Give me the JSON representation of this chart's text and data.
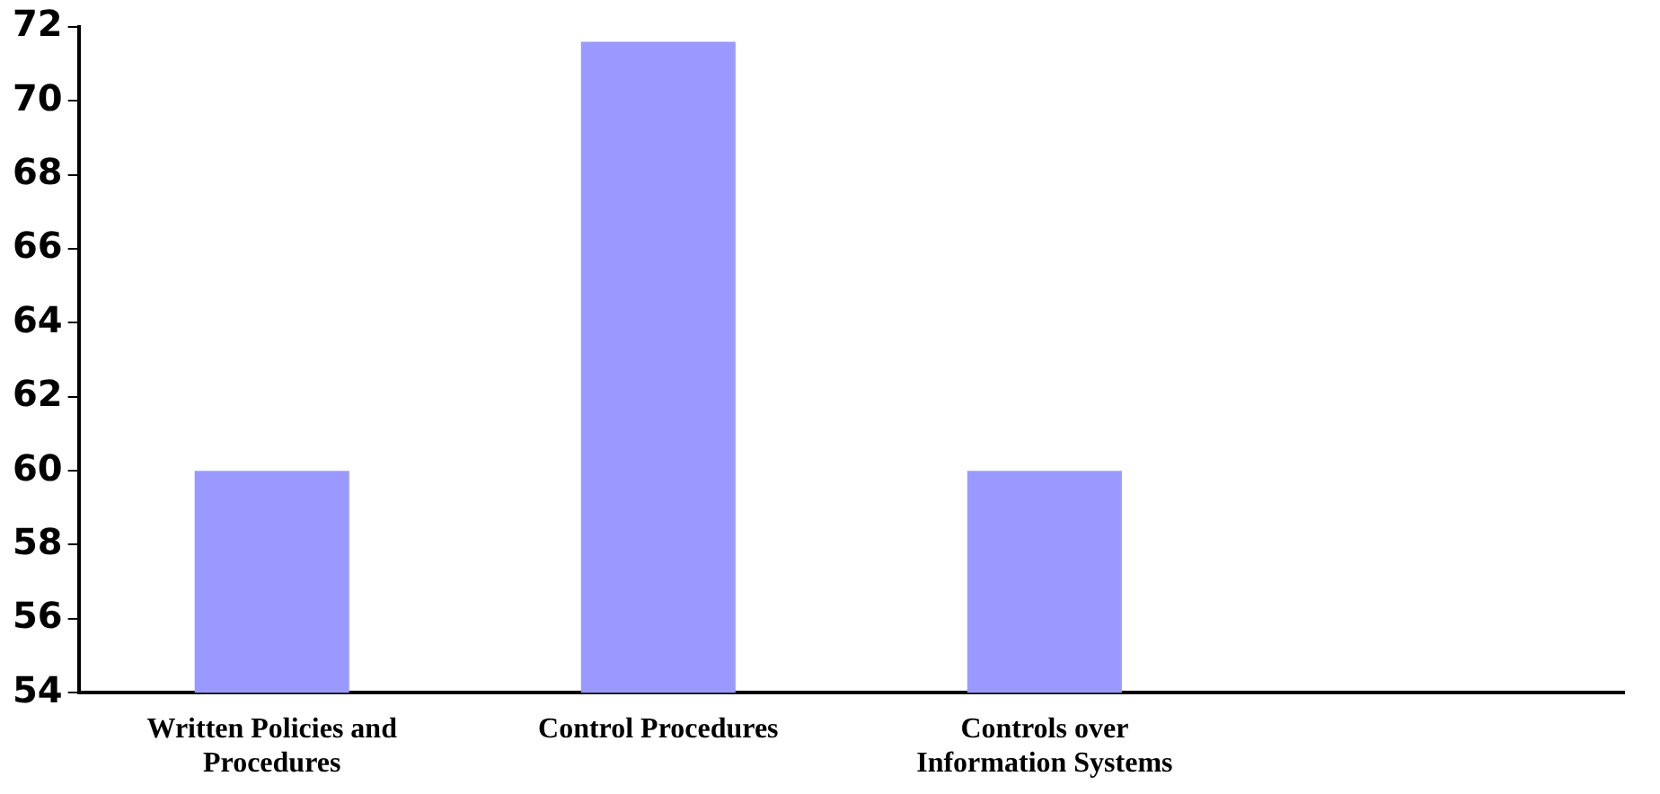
{
  "chart_data": {
    "type": "bar",
    "categories": [
      "Written Policies and Procedures",
      "Control Procedures",
      "Controls over Information Systems",
      null
    ],
    "values": [
      60,
      71.6,
      60,
      null
    ],
    "color": "#9999ff",
    "ylim": [
      54,
      72
    ],
    "yticks": [
      54,
      56,
      58,
      60,
      62,
      64,
      66,
      68,
      70,
      72
    ],
    "grid": false,
    "legend": false
  }
}
